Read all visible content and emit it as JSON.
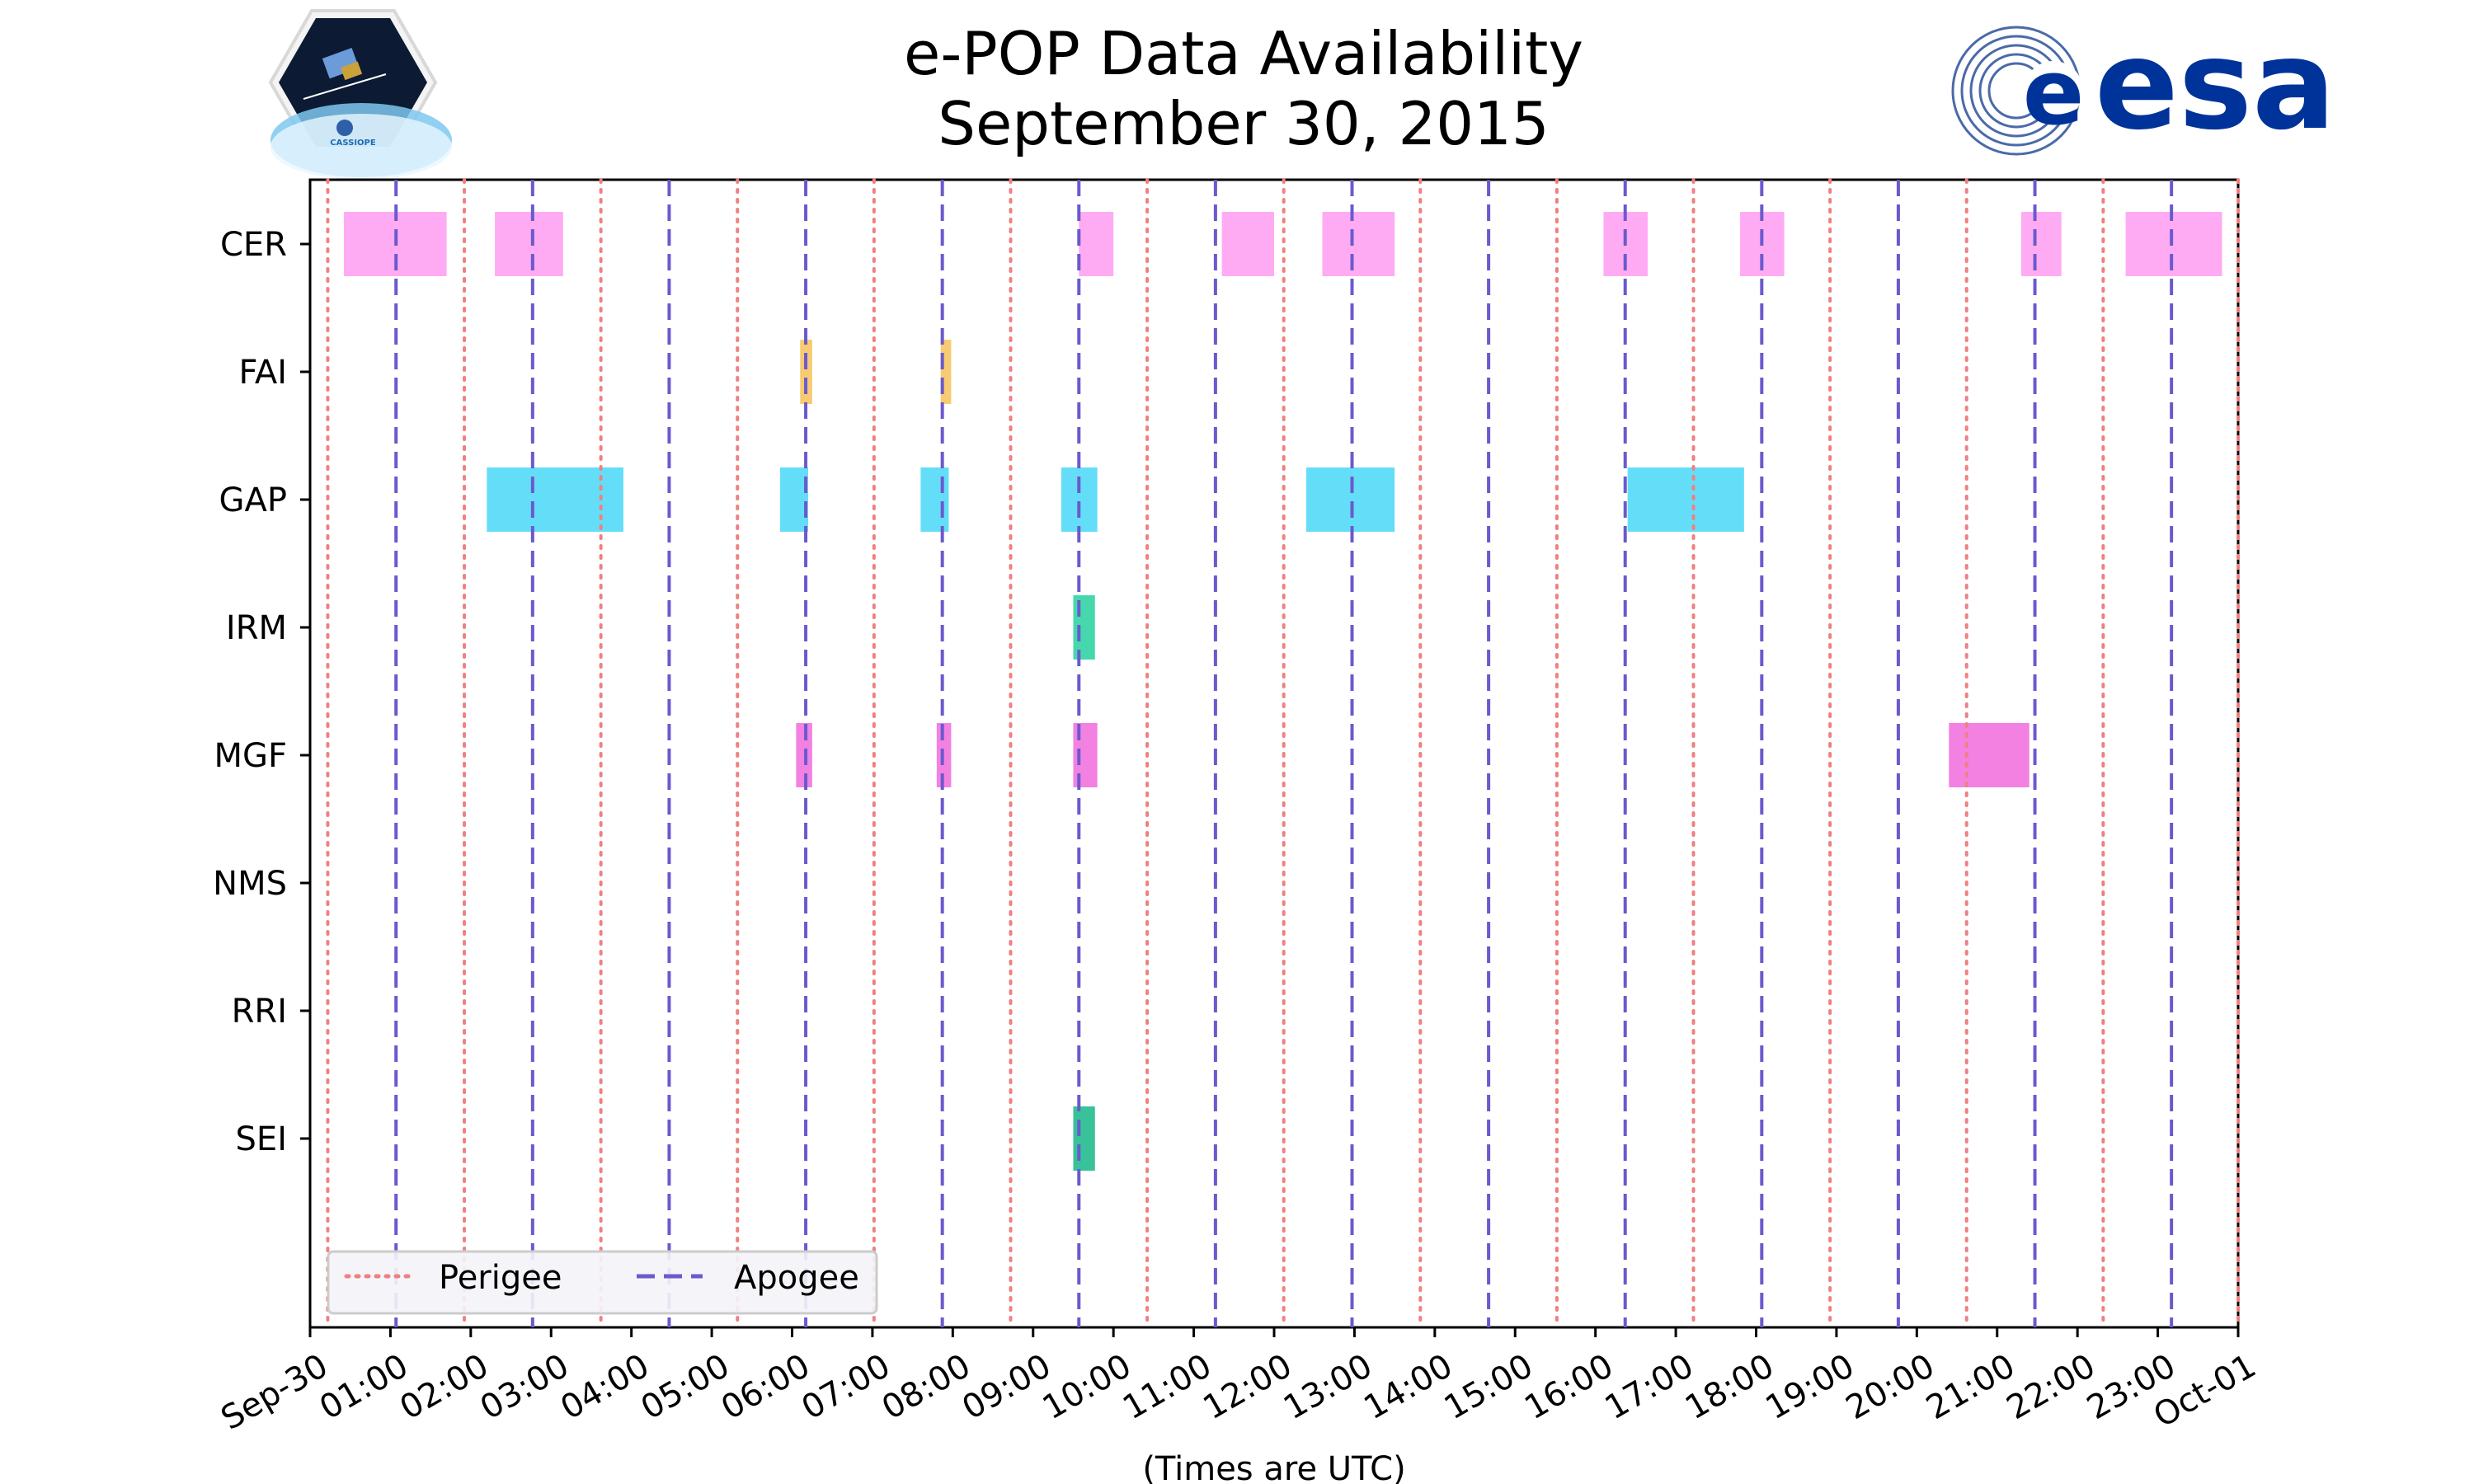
{
  "colors": {
    "perigee": "#f08080",
    "apogee": "#6a5acd",
    "CER": "#ffa6f2",
    "FAI": "#f8c86a",
    "GAP": "#5cdcf8",
    "IRM": "#3cd6a8",
    "MGF": "#f27ae0",
    "SEI": "#2ebf94"
  },
  "logos": {
    "left_caption": "CASSIOPE",
    "right_word": "esa"
  },
  "chart_data": {
    "type": "timeline",
    "title_lines": [
      "e-POP Data Availability",
      "September 30, 2015"
    ],
    "xlabel": "(Times are UTC)",
    "xlim": [
      0,
      24
    ],
    "x_tick_values": [
      0,
      1,
      2,
      3,
      4,
      5,
      6,
      7,
      8,
      9,
      10,
      11,
      12,
      13,
      14,
      15,
      16,
      17,
      18,
      19,
      20,
      21,
      22,
      23,
      24
    ],
    "x_tick_labels": [
      "Sep-30",
      "01:00",
      "02:00",
      "03:00",
      "04:00",
      "05:00",
      "06:00",
      "07:00",
      "08:00",
      "09:00",
      "10:00",
      "11:00",
      "12:00",
      "13:00",
      "14:00",
      "15:00",
      "16:00",
      "17:00",
      "18:00",
      "19:00",
      "20:00",
      "21:00",
      "22:00",
      "23:00",
      "Oct-01"
    ],
    "instruments": [
      "CER",
      "FAI",
      "GAP",
      "IRM",
      "MGF",
      "NMS",
      "RRI",
      "SEI"
    ],
    "perigee_times": [
      0.22,
      1.92,
      3.62,
      5.32,
      7.02,
      8.72,
      10.42,
      12.12,
      13.82,
      15.52,
      17.22,
      18.92,
      20.62,
      22.32,
      24.0
    ],
    "apogee_times": [
      1.07,
      2.77,
      4.47,
      6.17,
      7.87,
      9.57,
      11.27,
      12.97,
      14.67,
      16.37,
      18.07,
      19.77,
      21.47,
      23.17
    ],
    "intervals": {
      "CER": [
        [
          0.42,
          1.7
        ],
        [
          2.3,
          3.15
        ],
        [
          9.57,
          10.0
        ],
        [
          11.35,
          12.0
        ],
        [
          12.6,
          13.5
        ],
        [
          16.1,
          16.65
        ],
        [
          17.8,
          18.35
        ],
        [
          21.3,
          21.8
        ],
        [
          22.6,
          23.8
        ]
      ],
      "FAI": [
        [
          6.1,
          6.25
        ],
        [
          7.85,
          7.98
        ]
      ],
      "GAP": [
        [
          2.2,
          3.9
        ],
        [
          5.85,
          6.2
        ],
        [
          7.6,
          7.95
        ],
        [
          9.35,
          9.8
        ],
        [
          12.4,
          13.5
        ],
        [
          16.4,
          17.85
        ]
      ],
      "IRM": [
        [
          9.5,
          9.77
        ]
      ],
      "MGF": [
        [
          6.05,
          6.25
        ],
        [
          7.8,
          7.98
        ],
        [
          9.5,
          9.8
        ],
        [
          20.4,
          21.4
        ]
      ],
      "NMS": [],
      "RRI": [],
      "SEI": [
        [
          9.5,
          9.77
        ]
      ]
    },
    "legend": {
      "position": "lower-left",
      "entries": [
        {
          "label": "Perigee",
          "style": "dotted"
        },
        {
          "label": "Apogee",
          "style": "dashed"
        }
      ]
    }
  }
}
